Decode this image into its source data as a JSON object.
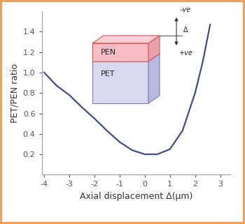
{
  "chart_data": {
    "type": "line",
    "x": [
      -4,
      -3.5,
      -3,
      -2.5,
      -2,
      -1.5,
      -1,
      -0.5,
      0,
      0.5,
      1,
      1.5,
      2,
      2.3,
      2.6
    ],
    "values": [
      1.0,
      0.87,
      0.78,
      0.66,
      0.55,
      0.43,
      0.32,
      0.24,
      0.2,
      0.2,
      0.25,
      0.43,
      0.8,
      1.1,
      1.47
    ],
    "color": "#3d4f86",
    "xlim": [
      -4.1,
      3.4
    ],
    "ylim": [
      0,
      1.6
    ],
    "xticks": [
      -4,
      -3,
      -2,
      -1,
      0,
      1,
      2,
      3
    ],
    "yticks": [
      0.2,
      0.4,
      0.6,
      0.8,
      {
        "value": 1,
        "label": "1.0"
      },
      1.2,
      1.4
    ],
    "x_label": "Axial displacement Δ(μm)",
    "y_label": "PET/PEN ratio",
    "grid": false,
    "inset": {
      "top_layer": "PEN",
      "bottom_layer": "PET",
      "negative": "-ve",
      "positive": "+ve",
      "symbol": "Δ"
    }
  }
}
